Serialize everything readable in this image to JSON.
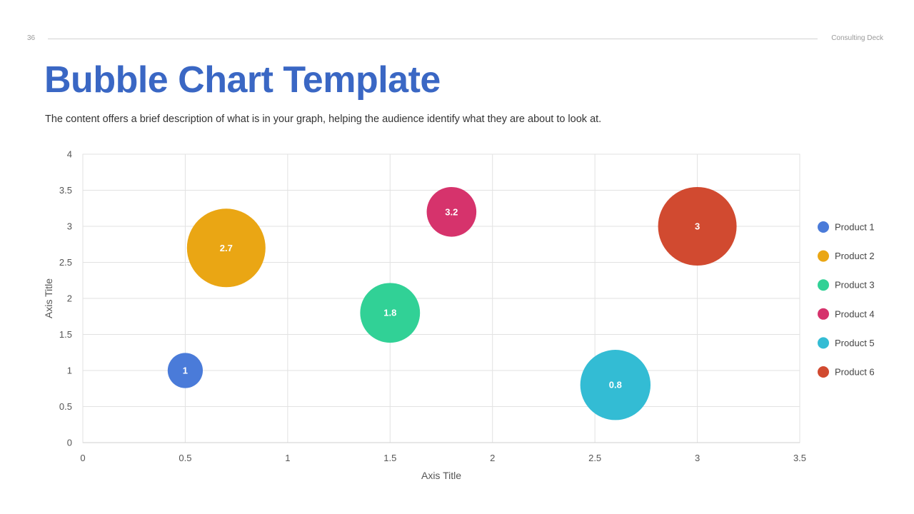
{
  "header": {
    "page_number": "36",
    "deck_name": "Consulting Deck"
  },
  "slide": {
    "title": "Bubble Chart Template",
    "subtitle": "The content offers a brief description of what is in your graph, helping the audience identify what they are about to look at."
  },
  "chart_data": {
    "type": "bubble",
    "xlabel": "Axis Title",
    "ylabel": "Axis Title",
    "xlim": [
      0,
      3.5
    ],
    "ylim": [
      0,
      4
    ],
    "x_ticks": [
      0,
      0.5,
      1,
      1.5,
      2,
      2.5,
      3,
      3.5
    ],
    "y_ticks": [
      0,
      0.5,
      1,
      1.5,
      2,
      2.5,
      3,
      3.5,
      4
    ],
    "grid": true,
    "legend_position": "right",
    "series": [
      {
        "name": "Product 1",
        "x": 0.5,
        "y": 1.0,
        "size": 1,
        "label": "1",
        "color": "#4a7bd9"
      },
      {
        "name": "Product 2",
        "x": 0.7,
        "y": 2.7,
        "size": 5,
        "label": "2.7",
        "color": "#eaa614"
      },
      {
        "name": "Product 3",
        "x": 1.5,
        "y": 1.8,
        "size": 2.9,
        "label": "1.8",
        "color": "#31d196"
      },
      {
        "name": "Product 4",
        "x": 1.8,
        "y": 3.2,
        "size": 2,
        "label": "3.2",
        "color": "#d6336c"
      },
      {
        "name": "Product 5",
        "x": 2.6,
        "y": 0.8,
        "size": 4,
        "label": "0.8",
        "color": "#33bcd4"
      },
      {
        "name": "Product 6",
        "x": 3.0,
        "y": 3.0,
        "size": 5,
        "label": "3",
        "color": "#d14a30"
      }
    ]
  }
}
